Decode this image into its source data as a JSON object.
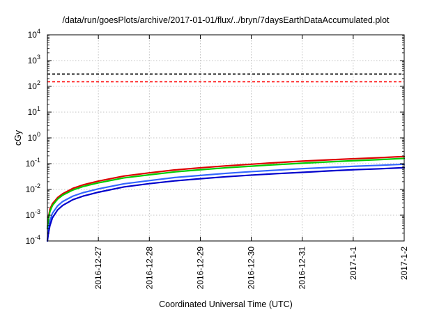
{
  "chart_data": {
    "type": "line",
    "title": "/data/run/goesPlots/archive/2017-01-01/flux/../bryn/7daysEarthDataAccumulated.plot",
    "xlabel": "Coordinated Universal Time (UTC)",
    "ylabel": "cGy",
    "x_start": "2016-12-26",
    "xlim_days": [
      0,
      7
    ],
    "x_ticks": [
      {
        "label": "2016-12-27",
        "day": 1
      },
      {
        "label": "2016-12-28",
        "day": 2
      },
      {
        "label": "2016-12-29",
        "day": 3
      },
      {
        "label": "2016-12-30",
        "day": 4
      },
      {
        "label": "2016-12-31",
        "day": 5
      },
      {
        "label": "2017-1-1",
        "day": 6
      },
      {
        "label": "2017-1-2",
        "day": 7
      }
    ],
    "y_scale": "log",
    "ylim": [
      0.0001,
      10000
    ],
    "y_ticks": [
      {
        "base": "10",
        "exp": "-4",
        "value": 0.0001
      },
      {
        "base": "10",
        "exp": "-3",
        "value": 0.001
      },
      {
        "base": "10",
        "exp": "-2",
        "value": 0.01
      },
      {
        "base": "10",
        "exp": "-1",
        "value": 0.1
      },
      {
        "base": "10",
        "exp": "0",
        "value": 1
      },
      {
        "base": "10",
        "exp": "1",
        "value": 10
      },
      {
        "base": "10",
        "exp": "2",
        "value": 100
      },
      {
        "base": "10",
        "exp": "3",
        "value": 1000
      },
      {
        "base": "10",
        "exp": "4",
        "value": 10000
      }
    ],
    "grid": true,
    "reference_lines": [
      {
        "value": 300,
        "color": "#000000",
        "style": "dashed"
      },
      {
        "value": 150,
        "color": "#ff0000",
        "style": "dashed"
      }
    ],
    "series": [
      {
        "color": "#dd0000",
        "x": [
          0,
          0.02,
          0.05,
          0.1,
          0.2,
          0.3,
          0.5,
          0.7,
          1.0,
          1.5,
          2.0,
          2.5,
          3.0,
          3.5,
          4.0,
          4.5,
          5.0,
          5.5,
          6.0,
          6.5,
          7.0
        ],
        "y": [
          0.0003,
          0.0008,
          0.0017,
          0.0028,
          0.0048,
          0.0068,
          0.011,
          0.015,
          0.021,
          0.033,
          0.044,
          0.057,
          0.069,
          0.082,
          0.095,
          0.11,
          0.125,
          0.14,
          0.155,
          0.17,
          0.19
        ]
      },
      {
        "color": "#00cc00",
        "x": [
          0,
          0.02,
          0.05,
          0.1,
          0.2,
          0.3,
          0.5,
          0.7,
          1.0,
          1.5,
          2.0,
          2.5,
          3.0,
          3.5,
          4.0,
          4.5,
          5.0,
          5.5,
          6.0,
          6.5,
          7.0
        ],
        "y": [
          0.0003,
          0.0007,
          0.0014,
          0.0024,
          0.0042,
          0.006,
          0.0095,
          0.013,
          0.018,
          0.028,
          0.037,
          0.048,
          0.058,
          0.069,
          0.08,
          0.092,
          0.104,
          0.117,
          0.13,
          0.143,
          0.16
        ]
      },
      {
        "color": "#3366ff",
        "x": [
          0,
          0.02,
          0.05,
          0.1,
          0.2,
          0.3,
          0.5,
          0.7,
          1.0,
          1.5,
          2.0,
          2.5,
          3.0,
          3.5,
          4.0,
          4.5,
          5.0,
          5.5,
          6.0,
          6.5,
          7.0
        ],
        "y": [
          0.0001,
          0.0003,
          0.0006,
          0.0012,
          0.0023,
          0.0034,
          0.0055,
          0.0075,
          0.0105,
          0.0165,
          0.022,
          0.029,
          0.035,
          0.042,
          0.049,
          0.056,
          0.064,
          0.071,
          0.079,
          0.086,
          0.095
        ]
      },
      {
        "color": "#0000cc",
        "x": [
          0,
          0.02,
          0.05,
          0.1,
          0.2,
          0.3,
          0.5,
          0.7,
          1.0,
          1.5,
          2.0,
          2.5,
          3.0,
          3.5,
          4.0,
          4.5,
          5.0,
          5.5,
          6.0,
          6.5,
          7.0
        ],
        "y": [
          0.0001,
          0.0002,
          0.0004,
          0.0008,
          0.0016,
          0.0024,
          0.004,
          0.0055,
          0.0078,
          0.0125,
          0.0168,
          0.0215,
          0.026,
          0.031,
          0.036,
          0.041,
          0.046,
          0.052,
          0.058,
          0.063,
          0.07
        ]
      }
    ]
  }
}
